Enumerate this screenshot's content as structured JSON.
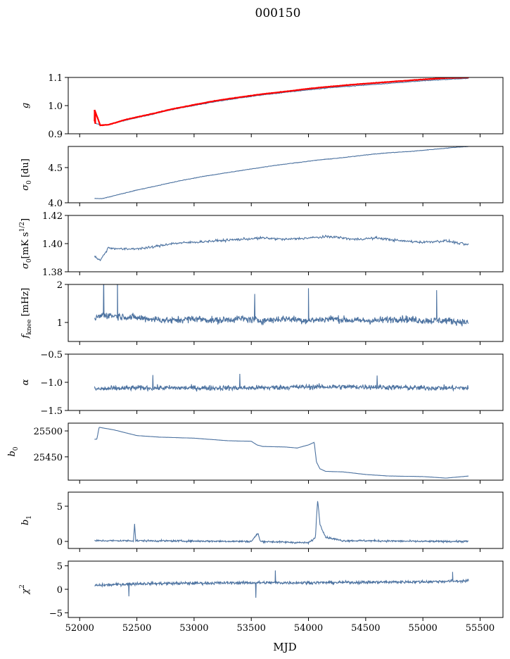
{
  "figure": {
    "title": "000150",
    "xlabel": "MJD",
    "xlim": [
      51900,
      55700
    ],
    "xticks": [
      52000,
      52500,
      53000,
      53500,
      54000,
      54500,
      55000,
      55500
    ],
    "xtick_labels": [
      "52000",
      "52500",
      "53000",
      "53500",
      "54000",
      "54500",
      "55000",
      "55500"
    ]
  },
  "chart_data": [
    {
      "type": "line",
      "id": "g",
      "ylabel": {
        "base": "g"
      },
      "ylim": [
        0.9,
        1.1
      ],
      "yticks": [
        0.9,
        1.0,
        1.1
      ],
      "ytick_labels": [
        "0.9",
        "1.0",
        "1.1"
      ],
      "x_range": [
        52130,
        55400
      ],
      "series": [
        {
          "color": "#4c72a0",
          "x": [
            52130,
            52180,
            52250,
            52400,
            52600,
            52800,
            53000,
            53200,
            53400,
            53600,
            53800,
            54000,
            54200,
            54400,
            54600,
            54800,
            55000,
            55200,
            55400
          ],
          "values": [
            0.94,
            0.93,
            0.932,
            0.948,
            0.966,
            0.985,
            1.0,
            1.015,
            1.027,
            1.038,
            1.047,
            1.056,
            1.064,
            1.07,
            1.076,
            1.082,
            1.088,
            1.093,
            1.097
          ]
        },
        {
          "color": "#ff0000",
          "x": [
            52130,
            52180,
            52250,
            52400,
            52600,
            52800,
            53000,
            53200,
            53400,
            53600,
            53800,
            54000,
            54200,
            54400,
            54600,
            54800,
            55000,
            55200,
            55400
          ],
          "values": [
            0.985,
            0.93,
            0.932,
            0.95,
            0.968,
            0.987,
            1.003,
            1.018,
            1.03,
            1.041,
            1.05,
            1.06,
            1.068,
            1.075,
            1.081,
            1.087,
            1.093,
            1.098,
            1.1
          ]
        }
      ]
    },
    {
      "type": "line",
      "id": "sigma0_du",
      "ylabel": {
        "base": "σ",
        "sub": "0",
        "suffix": " [du]"
      },
      "ylim": [
        4.0,
        4.8
      ],
      "yticks": [
        4.0,
        4.5
      ],
      "ytick_labels": [
        "4.0",
        "4.5"
      ],
      "x_range": [
        52130,
        55400
      ],
      "series": [
        {
          "color": "#4c72a0",
          "x": [
            52130,
            52200,
            52300,
            52500,
            52700,
            52900,
            53100,
            53300,
            53500,
            53700,
            53900,
            54100,
            54300,
            54500,
            54700,
            54900,
            55100,
            55300,
            55400
          ],
          "values": [
            4.06,
            4.06,
            4.1,
            4.18,
            4.25,
            4.32,
            4.38,
            4.43,
            4.48,
            4.53,
            4.57,
            4.61,
            4.64,
            4.68,
            4.71,
            4.73,
            4.76,
            4.79,
            4.8
          ]
        }
      ]
    },
    {
      "type": "line",
      "id": "sigma0_mk",
      "ylabel": {
        "base": "σ",
        "sub": "0",
        "suffix": "[mK s",
        "sup": "1/2",
        "end": "]"
      },
      "ylim": [
        1.38,
        1.42
      ],
      "yticks": [
        1.38,
        1.4,
        1.42
      ],
      "ytick_labels": [
        "1.38",
        "1.40",
        "1.42"
      ],
      "x_range": [
        52130,
        55400
      ],
      "series": [
        {
          "color": "#4c72a0",
          "x": [
            52130,
            52180,
            52250,
            52400,
            52600,
            52800,
            53000,
            53200,
            53400,
            53600,
            53800,
            54000,
            54200,
            54400,
            54600,
            54800,
            55000,
            55200,
            55400
          ],
          "values": [
            1.391,
            1.388,
            1.397,
            1.396,
            1.397,
            1.4,
            1.401,
            1.402,
            1.403,
            1.404,
            1.403,
            1.404,
            1.405,
            1.403,
            1.404,
            1.402,
            1.401,
            1.402,
            1.399
          ]
        }
      ]
    },
    {
      "type": "line",
      "id": "fknee",
      "ylabel": {
        "base": "f",
        "sub": "knee",
        "suffix": " [mHz]"
      },
      "ylim": [
        0.5,
        2.0
      ],
      "yticks": [
        1,
        2
      ],
      "ytick_labels": [
        "1",
        "2"
      ],
      "x_range": [
        52130,
        55400
      ],
      "series": [
        {
          "color": "#4c72a0",
          "x": [
            52130,
            52200,
            52400,
            52600,
            52800,
            53000,
            53200,
            53400,
            53600,
            53800,
            54000,
            54200,
            54400,
            54600,
            54800,
            55000,
            55200,
            55400
          ],
          "values": [
            1.1,
            1.2,
            1.15,
            1.1,
            1.05,
            1.1,
            1.05,
            1.1,
            1.05,
            1.1,
            1.05,
            1.1,
            1.05,
            1.05,
            1.1,
            1.05,
            1.05,
            1.0
          ]
        }
      ]
    },
    {
      "type": "line",
      "id": "alpha",
      "ylabel": {
        "base": "α"
      },
      "ylim": [
        -1.5,
        -0.5
      ],
      "yticks": [
        -1.5,
        -1.0,
        -0.5
      ],
      "ytick_labels": [
        "−1.5",
        "−1.0",
        "−0.5"
      ],
      "x_range": [
        52130,
        55400
      ],
      "series": [
        {
          "color": "#4c72a0",
          "x": [
            52130,
            52500,
            53000,
            53500,
            54000,
            54500,
            55000,
            55400
          ],
          "values": [
            -1.12,
            -1.1,
            -1.1,
            -1.1,
            -1.08,
            -1.08,
            -1.1,
            -1.1
          ]
        }
      ]
    },
    {
      "type": "line",
      "id": "b0",
      "ylabel": {
        "base": "b",
        "sub": "0"
      },
      "ylim": [
        25405,
        25515
      ],
      "yticks": [
        25450,
        25500
      ],
      "ytick_labels": [
        "25450",
        "25500"
      ],
      "x_range": [
        52130,
        55400
      ],
      "series": [
        {
          "color": "#4c72a0",
          "x": [
            52130,
            52150,
            52170,
            52300,
            52500,
            52700,
            53000,
            53300,
            53500,
            53550,
            53600,
            53800,
            53900,
            54000,
            54050,
            54070,
            54100,
            54150,
            54300,
            54500,
            54700,
            55000,
            55200,
            55300,
            55400
          ],
          "values": [
            25484,
            25484,
            25507,
            25502,
            25491,
            25488,
            25486,
            25481,
            25480,
            25473,
            25470,
            25469,
            25467,
            25473,
            25478,
            25440,
            25427,
            25422,
            25421,
            25416,
            25413,
            25412,
            25409,
            25411,
            25413
          ]
        }
      ]
    },
    {
      "type": "line",
      "id": "b1",
      "ylabel": {
        "base": "b",
        "sub": "1"
      },
      "ylim": [
        -1,
        7
      ],
      "yticks": [
        0,
        5
      ],
      "ytick_labels": [
        "0",
        "5"
      ],
      "x_range": [
        52130,
        55400
      ],
      "series": [
        {
          "color": "#4c72a0",
          "x": [
            52130,
            52470,
            52480,
            52490,
            52500,
            53500,
            53560,
            53570,
            53580,
            54000,
            54060,
            54080,
            54100,
            54150,
            54300,
            54500,
            55000,
            55400
          ],
          "values": [
            0.1,
            0.1,
            2.5,
            0.1,
            0.1,
            0.0,
            1.2,
            0.4,
            0.0,
            -0.2,
            0.5,
            6.0,
            2.5,
            0.6,
            0.1,
            0.1,
            0.0,
            0.0
          ]
        }
      ]
    },
    {
      "type": "line",
      "id": "chi2",
      "ylabel": {
        "base": "χ",
        "sup": "2"
      },
      "ylim": [
        -6,
        6
      ],
      "yticks": [
        -5,
        0,
        5
      ],
      "ytick_labels": [
        "−5",
        "0",
        "5"
      ],
      "x_range": [
        52130,
        55400
      ],
      "series": [
        {
          "color": "#4c72a0",
          "x": [
            52130,
            52500,
            53000,
            53500,
            54000,
            54500,
            55000,
            55400
          ],
          "values": [
            0.8,
            1.2,
            1.3,
            1.4,
            1.4,
            1.5,
            1.6,
            1.8
          ]
        }
      ]
    }
  ]
}
